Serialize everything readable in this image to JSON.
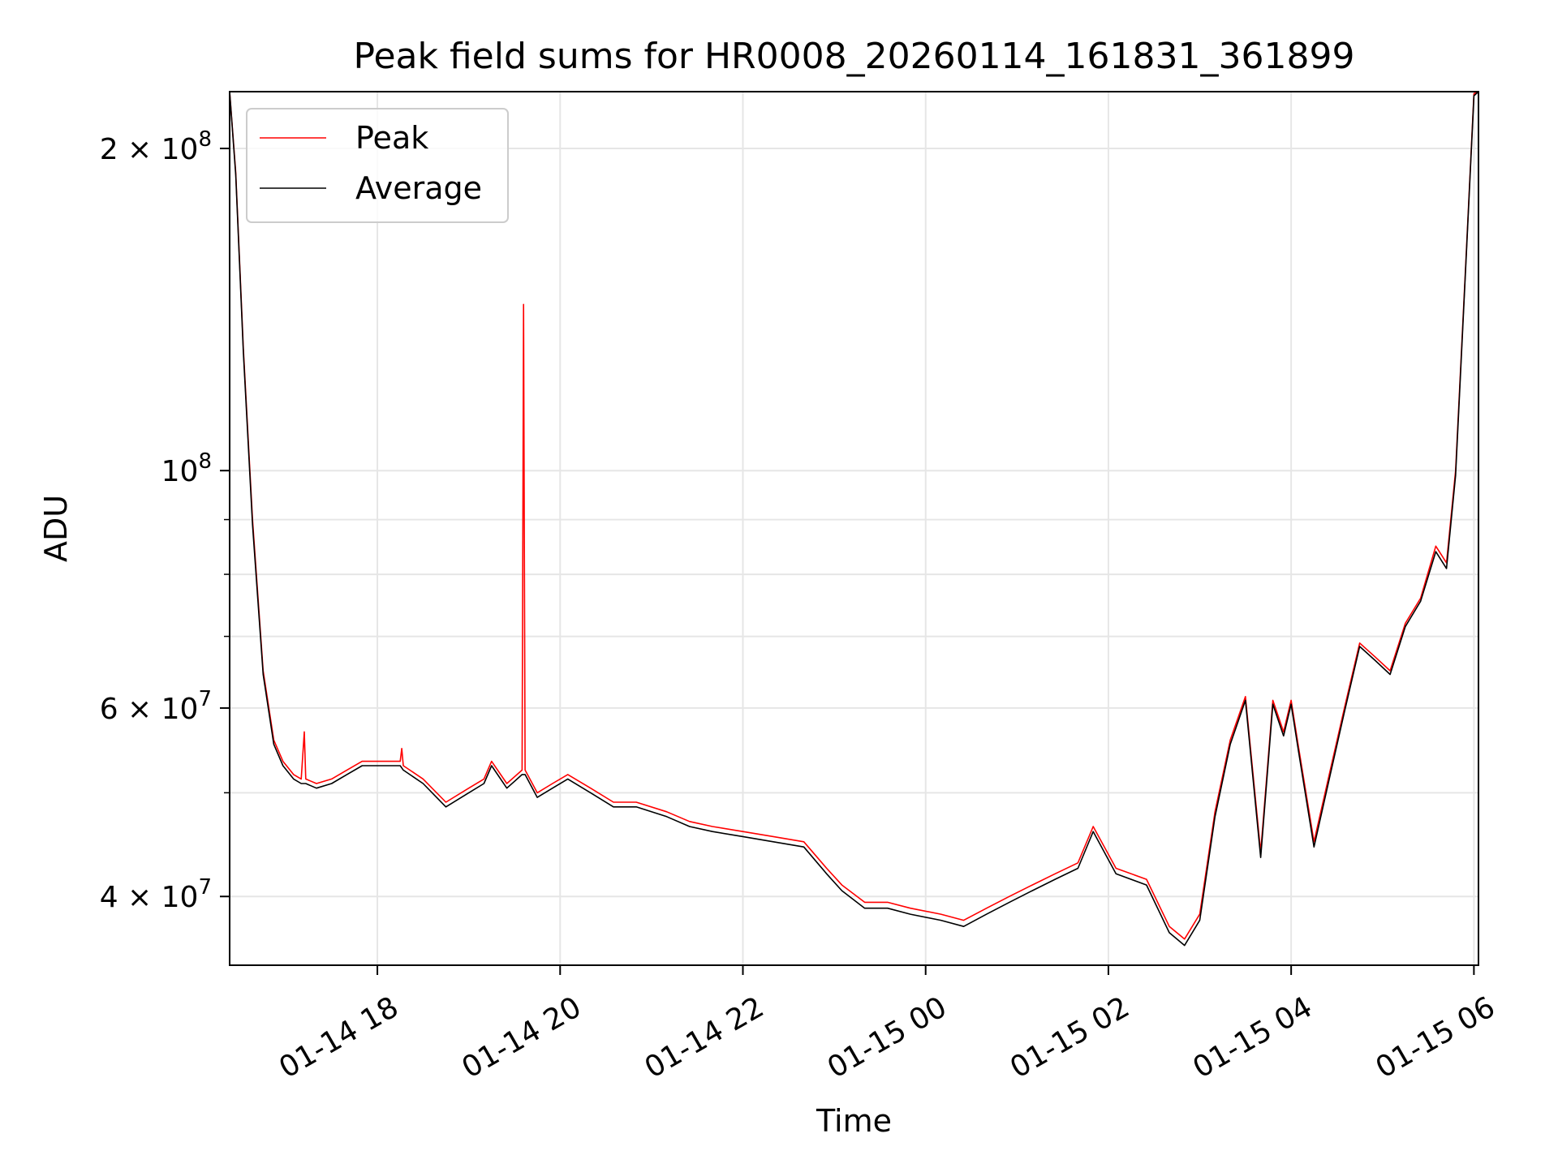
{
  "chart_data": {
    "type": "line",
    "title": "Peak field sums for HR0008_20260114_161831_361899",
    "xlabel": "Time",
    "ylabel": "ADU",
    "yscale": "log",
    "ylim": [
      34500000,
      226000000
    ],
    "xlim": [
      "2026-01-14 16:23",
      "2026-01-15 06:03"
    ],
    "grid": true,
    "legend_position": "top-left",
    "colors": {
      "peak": "#ff0000",
      "average": "#000000",
      "grid": "#e6e6e6",
      "axes": "#000000"
    },
    "x_ticks": [
      {
        "value": "2026-01-14 18:00",
        "label": "01-14 18"
      },
      {
        "value": "2026-01-14 20:00",
        "label": "01-14 20"
      },
      {
        "value": "2026-01-14 22:00",
        "label": "01-14 22"
      },
      {
        "value": "2026-01-15 00:00",
        "label": "01-15 00"
      },
      {
        "value": "2026-01-15 02:00",
        "label": "01-15 02"
      },
      {
        "value": "2026-01-15 04:00",
        "label": "01-15 04"
      },
      {
        "value": "2026-01-15 06:00",
        "label": "01-15 06"
      }
    ],
    "y_major_ticks": [
      {
        "value": 40000000,
        "mantissa": "4",
        "times": "×",
        "base": "10",
        "exp": "7"
      },
      {
        "value": 60000000,
        "mantissa": "6",
        "times": "×",
        "base": "10",
        "exp": "7"
      },
      {
        "value": 100000000,
        "mantissa": "",
        "times": "",
        "base": "10",
        "exp": "8"
      },
      {
        "value": 200000000,
        "mantissa": "2",
        "times": "×",
        "base": "10",
        "exp": "8"
      }
    ],
    "y_minor_ticks": [
      50000000,
      70000000,
      80000000,
      90000000
    ],
    "series": [
      {
        "name": "Peak",
        "x": [
          "2026-01-14 16:23",
          "2026-01-14 16:27",
          "2026-01-14 16:32",
          "2026-01-14 16:38",
          "2026-01-14 16:45",
          "2026-01-14 16:52",
          "2026-01-14 16:58",
          "2026-01-14 17:05",
          "2026-01-14 17:10",
          "2026-01-14 17:12",
          "2026-01-14 17:13",
          "2026-01-14 17:20",
          "2026-01-14 17:30",
          "2026-01-14 17:40",
          "2026-01-14 17:50",
          "2026-01-14 18:00",
          "2026-01-14 18:15",
          "2026-01-14 18:16",
          "2026-01-14 18:17",
          "2026-01-14 18:30",
          "2026-01-14 18:45",
          "2026-01-14 19:00",
          "2026-01-14 19:10",
          "2026-01-14 19:15",
          "2026-01-14 19:25",
          "2026-01-14 19:35",
          "2026-01-14 19:36",
          "2026-01-14 19:37",
          "2026-01-14 19:45",
          "2026-01-14 19:55",
          "2026-01-14 20:05",
          "2026-01-14 20:20",
          "2026-01-14 20:35",
          "2026-01-14 20:50",
          "2026-01-14 21:10",
          "2026-01-14 21:25",
          "2026-01-14 21:40",
          "2026-01-14 22:00",
          "2026-01-14 22:20",
          "2026-01-14 22:40",
          "2026-01-14 22:55",
          "2026-01-14 23:05",
          "2026-01-14 23:20",
          "2026-01-14 23:35",
          "2026-01-14 23:50",
          "2026-01-15 00:10",
          "2026-01-15 00:25",
          "2026-01-15 00:40",
          "2026-01-15 00:55",
          "2026-01-15 01:10",
          "2026-01-15 01:25",
          "2026-01-15 01:40",
          "2026-01-15 01:50",
          "2026-01-15 02:05",
          "2026-01-15 02:25",
          "2026-01-15 02:40",
          "2026-01-15 02:50",
          "2026-01-15 03:00",
          "2026-01-15 03:10",
          "2026-01-15 03:20",
          "2026-01-15 03:30",
          "2026-01-15 03:40",
          "2026-01-15 03:48",
          "2026-01-15 03:55",
          "2026-01-15 04:00",
          "2026-01-15 04:05",
          "2026-01-15 04:15",
          "2026-01-15 04:25",
          "2026-01-15 04:35",
          "2026-01-15 04:45",
          "2026-01-15 04:55",
          "2026-01-15 05:05",
          "2026-01-15 05:15",
          "2026-01-15 05:25",
          "2026-01-15 05:35",
          "2026-01-15 05:42",
          "2026-01-15 05:48",
          "2026-01-15 05:55",
          "2026-01-15 06:00",
          "2026-01-15 06:03"
        ],
        "y": [
          226000000,
          190000000,
          130000000,
          90000000,
          65000000,
          56000000,
          53500000,
          52000000,
          51500000,
          57000000,
          51500000,
          51000000,
          51500000,
          52500000,
          53500000,
          53500000,
          53500000,
          55000000,
          53000000,
          51500000,
          49000000,
          50500000,
          51500000,
          53500000,
          51000000,
          52500000,
          143000000,
          52500000,
          50000000,
          51000000,
          52000000,
          50500000,
          49000000,
          49000000,
          48000000,
          47000000,
          46500000,
          46000000,
          45500000,
          45000000,
          42500000,
          41000000,
          39500000,
          39500000,
          39000000,
          38500000,
          38000000,
          39000000,
          40000000,
          41000000,
          42000000,
          43000000,
          46500000,
          42500000,
          41500000,
          37500000,
          36500000,
          38500000,
          48000000,
          56000000,
          61500000,
          44000000,
          61000000,
          57000000,
          61000000,
          55000000,
          45000000,
          52000000,
          60000000,
          69000000,
          67000000,
          65000000,
          72000000,
          76000000,
          85000000,
          82000000,
          100000000,
          160000000,
          225000000,
          226000000
        ]
      },
      {
        "name": "Average",
        "x": [
          "2026-01-14 16:23",
          "2026-01-14 16:27",
          "2026-01-14 16:32",
          "2026-01-14 16:38",
          "2026-01-14 16:45",
          "2026-01-14 16:52",
          "2026-01-14 16:58",
          "2026-01-14 17:05",
          "2026-01-14 17:10",
          "2026-01-14 17:13",
          "2026-01-14 17:20",
          "2026-01-14 17:30",
          "2026-01-14 17:40",
          "2026-01-14 17:50",
          "2026-01-14 18:00",
          "2026-01-14 18:15",
          "2026-01-14 18:17",
          "2026-01-14 18:30",
          "2026-01-14 18:45",
          "2026-01-14 19:00",
          "2026-01-14 19:10",
          "2026-01-14 19:15",
          "2026-01-14 19:25",
          "2026-01-14 19:35",
          "2026-01-14 19:37",
          "2026-01-14 19:45",
          "2026-01-14 19:55",
          "2026-01-14 20:05",
          "2026-01-14 20:20",
          "2026-01-14 20:35",
          "2026-01-14 20:50",
          "2026-01-14 21:10",
          "2026-01-14 21:25",
          "2026-01-14 21:40",
          "2026-01-14 22:00",
          "2026-01-14 22:20",
          "2026-01-14 22:40",
          "2026-01-14 22:55",
          "2026-01-14 23:05",
          "2026-01-14 23:20",
          "2026-01-14 23:35",
          "2026-01-14 23:50",
          "2026-01-15 00:10",
          "2026-01-15 00:25",
          "2026-01-15 00:40",
          "2026-01-15 00:55",
          "2026-01-15 01:10",
          "2026-01-15 01:25",
          "2026-01-15 01:40",
          "2026-01-15 01:50",
          "2026-01-15 02:05",
          "2026-01-15 02:25",
          "2026-01-15 02:40",
          "2026-01-15 02:50",
          "2026-01-15 03:00",
          "2026-01-15 03:10",
          "2026-01-15 03:20",
          "2026-01-15 03:30",
          "2026-01-15 03:40",
          "2026-01-15 03:48",
          "2026-01-15 03:55",
          "2026-01-15 04:00",
          "2026-01-15 04:05",
          "2026-01-15 04:15",
          "2026-01-15 04:25",
          "2026-01-15 04:35",
          "2026-01-15 04:45",
          "2026-01-15 04:55",
          "2026-01-15 05:05",
          "2026-01-15 05:15",
          "2026-01-15 05:25",
          "2026-01-15 05:35",
          "2026-01-15 05:42",
          "2026-01-15 05:48",
          "2026-01-15 05:55",
          "2026-01-15 06:00",
          "2026-01-15 06:03"
        ],
        "y": [
          226000000,
          189000000,
          129000000,
          89000000,
          64500000,
          55500000,
          53000000,
          51500000,
          51000000,
          51000000,
          50500000,
          51000000,
          52000000,
          53000000,
          53000000,
          53000000,
          52500000,
          51000000,
          48500000,
          50000000,
          51000000,
          53000000,
          50500000,
          52000000,
          52000000,
          49500000,
          50500000,
          51500000,
          50000000,
          48500000,
          48500000,
          47500000,
          46500000,
          46000000,
          45500000,
          45000000,
          44500000,
          42000000,
          40500000,
          39000000,
          39000000,
          38500000,
          38000000,
          37500000,
          38500000,
          39500000,
          40500000,
          41500000,
          42500000,
          46000000,
          42000000,
          41000000,
          37000000,
          36000000,
          38000000,
          47500000,
          55500000,
          61000000,
          43500000,
          60500000,
          56500000,
          60500000,
          54500000,
          44500000,
          51500000,
          59500000,
          68500000,
          66500000,
          64500000,
          71500000,
          75500000,
          84000000,
          81000000,
          99000000,
          159000000,
          224000000,
          226000000
        ]
      }
    ]
  }
}
